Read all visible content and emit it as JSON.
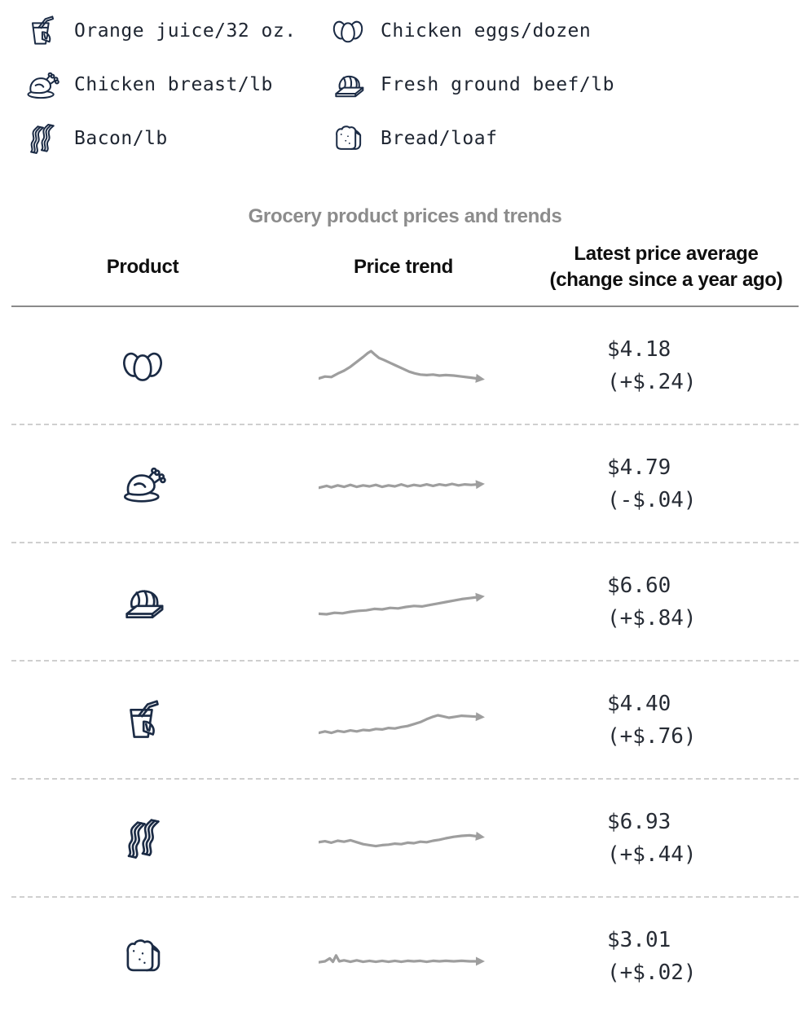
{
  "colors": {
    "icon_ink": "#1b2b45",
    "legend_text": "#1e2531",
    "price_text": "#272c35",
    "title_gray": "#8c8c8c",
    "header_black": "#0f0f0f",
    "sparkline_gray": "#9e9e9e",
    "rule_solid": "#8a8a8a",
    "rule_dashed": "#cfcfcf"
  },
  "legend": {
    "items": [
      {
        "icon": "orange-juice",
        "label": "Orange juice/32 oz."
      },
      {
        "icon": "eggs",
        "label": "Chicken eggs/dozen"
      },
      {
        "icon": "chicken",
        "label": "Chicken breast/lb"
      },
      {
        "icon": "beef",
        "label": "Fresh ground beef/lb"
      },
      {
        "icon": "bacon",
        "label": "Bacon/lb"
      },
      {
        "icon": "bread",
        "label": "Bread/loaf"
      }
    ]
  },
  "table": {
    "title": "Grocery product prices and trends",
    "headers": {
      "product": "Product",
      "trend": "Price trend",
      "price_line1": "Latest price average",
      "price_line2": "(change since a year ago)"
    },
    "rows": [
      {
        "icon": "eggs",
        "product": "Chicken eggs/dozen",
        "price": "$4.18",
        "change": "(+$.24)"
      },
      {
        "icon": "chicken",
        "product": "Chicken breast/lb",
        "price": "$4.79",
        "change": "(-$.04)"
      },
      {
        "icon": "beef",
        "product": "Fresh ground beef/lb",
        "price": "$6.60",
        "change": "(+$.84)"
      },
      {
        "icon": "orange-juice",
        "product": "Orange juice/32 oz.",
        "price": "$4.40",
        "change": "(+$.76)"
      },
      {
        "icon": "bacon",
        "product": "Bacon/lb",
        "price": "$6.93",
        "change": "(+$.44)"
      },
      {
        "icon": "bread",
        "product": "Bread/loaf",
        "price": "$3.01",
        "change": "(+$.02)"
      }
    ]
  },
  "chart_data": {
    "type": "table",
    "title": "Grocery product prices and trends",
    "columns": [
      "Product",
      "Price trend",
      "Latest price average (change since a year ago)"
    ],
    "legend_position": "top",
    "rows": [
      {
        "product": "Chicken eggs/dozen",
        "latest_price_usd": 4.18,
        "change_since_year_ago_usd": 0.24,
        "trend_shape": "sharp rise to a peak then decline and flatten",
        "sparkline": [
          [
            0,
            33
          ],
          [
            4,
            31
          ],
          [
            8,
            31.5
          ],
          [
            12,
            28
          ],
          [
            16,
            25
          ],
          [
            20,
            21
          ],
          [
            24,
            16
          ],
          [
            28,
            11
          ],
          [
            31,
            7
          ],
          [
            33,
            5
          ],
          [
            35,
            8
          ],
          [
            38,
            12
          ],
          [
            41,
            14
          ],
          [
            45,
            17
          ],
          [
            49,
            20
          ],
          [
            53,
            23
          ],
          [
            57,
            26
          ],
          [
            61,
            28
          ],
          [
            64,
            29
          ],
          [
            68,
            29.5
          ],
          [
            72,
            29
          ],
          [
            76,
            30
          ],
          [
            80,
            29.5
          ],
          [
            85,
            30
          ],
          [
            90,
            31
          ],
          [
            95,
            32
          ],
          [
            100,
            33
          ]
        ]
      },
      {
        "product": "Chicken breast/lb",
        "latest_price_usd": 4.79,
        "change_since_year_ago_usd": -0.04,
        "trend_shape": "flat with small wiggles",
        "sparkline": [
          [
            0,
            24
          ],
          [
            5,
            22
          ],
          [
            8,
            23.5
          ],
          [
            12,
            21.5
          ],
          [
            16,
            23
          ],
          [
            20,
            21
          ],
          [
            24,
            23
          ],
          [
            28,
            21.5
          ],
          [
            32,
            22.5
          ],
          [
            36,
            21
          ],
          [
            40,
            23
          ],
          [
            44,
            21.5
          ],
          [
            48,
            22.5
          ],
          [
            52,
            20.5
          ],
          [
            56,
            22.5
          ],
          [
            60,
            21
          ],
          [
            64,
            22
          ],
          [
            68,
            20.5
          ],
          [
            72,
            22
          ],
          [
            76,
            20.5
          ],
          [
            80,
            21.5
          ],
          [
            84,
            20
          ],
          [
            88,
            21.5
          ],
          [
            92,
            20.5
          ],
          [
            96,
            21
          ],
          [
            100,
            20.5
          ]
        ]
      },
      {
        "product": "Fresh ground beef/lb",
        "latest_price_usd": 6.6,
        "change_since_year_ago_usd": 0.84,
        "trend_shape": "steady gradual rise",
        "sparkline": [
          [
            0,
            32
          ],
          [
            5,
            32.5
          ],
          [
            10,
            31
          ],
          [
            15,
            31.5
          ],
          [
            20,
            30
          ],
          [
            25,
            29
          ],
          [
            30,
            28.5
          ],
          [
            35,
            27
          ],
          [
            40,
            27.5
          ],
          [
            45,
            26
          ],
          [
            50,
            26.5
          ],
          [
            55,
            25
          ],
          [
            60,
            24
          ],
          [
            65,
            24.5
          ],
          [
            70,
            23
          ],
          [
            75,
            21.5
          ],
          [
            80,
            20
          ],
          [
            85,
            18.5
          ],
          [
            90,
            17
          ],
          [
            95,
            16
          ],
          [
            100,
            15
          ]
        ]
      },
      {
        "product": "Orange juice/32 oz.",
        "latest_price_usd": 4.4,
        "change_since_year_ago_usd": 0.76,
        "trend_shape": "gradual rise with bump near end",
        "sparkline": [
          [
            0,
            33
          ],
          [
            4,
            31.5
          ],
          [
            8,
            33
          ],
          [
            12,
            31
          ],
          [
            16,
            32
          ],
          [
            20,
            30.5
          ],
          [
            24,
            31.5
          ],
          [
            28,
            30
          ],
          [
            32,
            30.5
          ],
          [
            36,
            29
          ],
          [
            40,
            29.5
          ],
          [
            44,
            28
          ],
          [
            48,
            28.5
          ],
          [
            52,
            27
          ],
          [
            56,
            26
          ],
          [
            60,
            24
          ],
          [
            64,
            22
          ],
          [
            68,
            19
          ],
          [
            72,
            16.5
          ],
          [
            75,
            15
          ],
          [
            78,
            16
          ],
          [
            82,
            17.5
          ],
          [
            86,
            16.5
          ],
          [
            90,
            15.5
          ],
          [
            95,
            16
          ],
          [
            100,
            16.5
          ]
        ]
      },
      {
        "product": "Bacon/lb",
        "latest_price_usd": 6.93,
        "change_since_year_ago_usd": 0.44,
        "trend_shape": "wavy with mid dip then slight rise",
        "sparkline": [
          [
            0,
            24
          ],
          [
            4,
            23
          ],
          [
            8,
            24.5
          ],
          [
            12,
            22.5
          ],
          [
            16,
            23.5
          ],
          [
            20,
            22
          ],
          [
            24,
            24
          ],
          [
            28,
            26
          ],
          [
            32,
            27
          ],
          [
            36,
            28
          ],
          [
            40,
            27
          ],
          [
            44,
            26.5
          ],
          [
            48,
            25.5
          ],
          [
            52,
            26
          ],
          [
            56,
            24.5
          ],
          [
            60,
            25
          ],
          [
            64,
            23.5
          ],
          [
            68,
            24
          ],
          [
            72,
            22.5
          ],
          [
            76,
            21.5
          ],
          [
            80,
            20
          ],
          [
            85,
            18.5
          ],
          [
            90,
            17.5
          ],
          [
            95,
            17
          ],
          [
            100,
            18
          ]
        ]
      },
      {
        "product": "Bread/loaf",
        "latest_price_usd": 3.01,
        "change_since_year_ago_usd": 0.02,
        "trend_shape": "flat with small spike near start",
        "sparkline": [
          [
            0,
            26
          ],
          [
            4,
            25
          ],
          [
            7,
            22
          ],
          [
            9,
            25.5
          ],
          [
            11,
            19
          ],
          [
            13,
            25
          ],
          [
            16,
            24
          ],
          [
            20,
            25.5
          ],
          [
            24,
            24
          ],
          [
            28,
            25.5
          ],
          [
            32,
            24.5
          ],
          [
            36,
            25.5
          ],
          [
            40,
            24.5
          ],
          [
            44,
            25.5
          ],
          [
            48,
            24.5
          ],
          [
            52,
            25.5
          ],
          [
            56,
            24.5
          ],
          [
            60,
            25
          ],
          [
            64,
            24.5
          ],
          [
            68,
            25.5
          ],
          [
            72,
            24.5
          ],
          [
            76,
            25
          ],
          [
            80,
            24.5
          ],
          [
            85,
            25
          ],
          [
            90,
            24.5
          ],
          [
            95,
            25
          ],
          [
            100,
            25
          ]
        ]
      }
    ]
  }
}
